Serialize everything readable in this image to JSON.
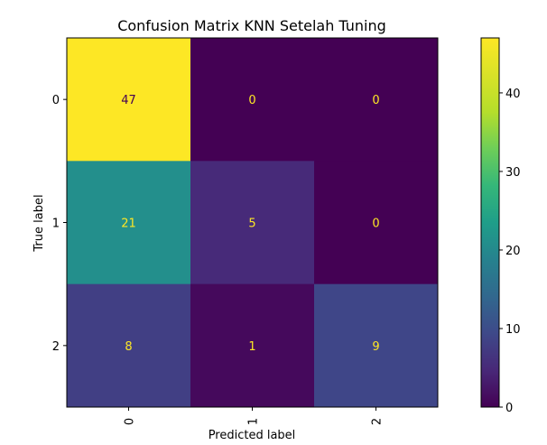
{
  "chart_data": {
    "type": "heatmap",
    "title": "Confusion Matrix KNN Setelah Tuning",
    "xlabel": "Predicted label",
    "ylabel": "True label",
    "x_ticks": [
      "0",
      "1",
      "2"
    ],
    "y_ticks": [
      "0",
      "1",
      "2"
    ],
    "matrix": [
      [
        47,
        0,
        0
      ],
      [
        21,
        5,
        0
      ],
      [
        8,
        1,
        9
      ]
    ],
    "colormap": "viridis",
    "value_range": [
      0,
      47
    ],
    "colorbar_ticks": [
      "0",
      "10",
      "20",
      "30",
      "40"
    ],
    "cell_text_colors": {
      "on_dark": "#fde725",
      "on_light": "#440154"
    }
  }
}
